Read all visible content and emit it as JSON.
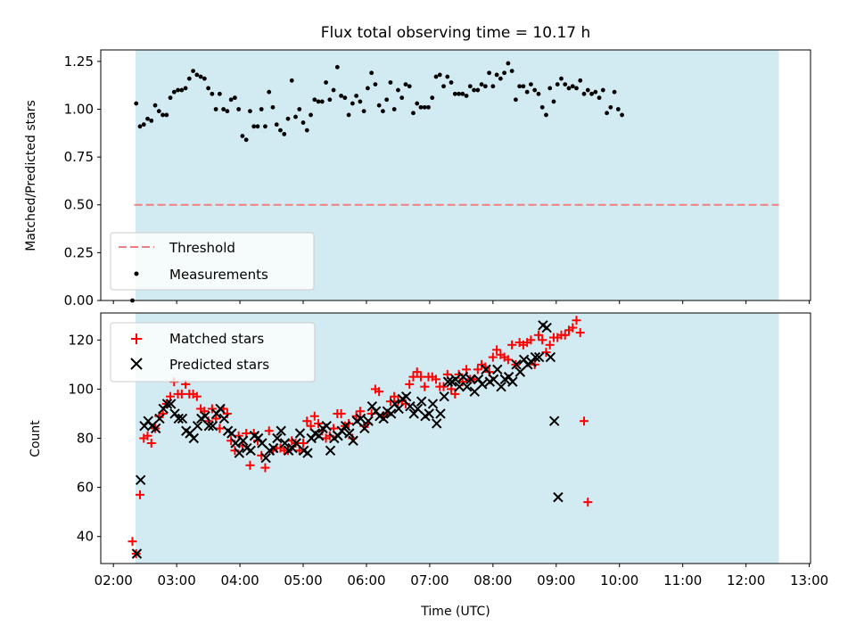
{
  "chart_data": [
    {
      "type": "scatter",
      "title": "Flux total observing time = 10.17 h",
      "ylabel": "Matched/Predicted stars",
      "xlabel": "",
      "ylim": [
        0,
        1.31
      ],
      "xlim_hours": [
        1.8,
        13.02
      ],
      "yticks": [
        "0.00",
        "0.25",
        "0.50",
        "0.75",
        "1.00",
        "1.25"
      ],
      "shaded_range_hours": [
        2.35,
        12.52
      ],
      "threshold": 0.5,
      "legend": {
        "position": "lower-left",
        "entries": [
          "Threshold",
          "Measurements"
        ]
      },
      "series": [
        {
          "name": "Measurements",
          "x_start_hours": 2.3,
          "x_step_hours": 0.06,
          "y": [
            0.0,
            1.03,
            0.91,
            0.92,
            0.95,
            0.94,
            1.02,
            0.99,
            0.97,
            0.97,
            1.06,
            1.09,
            1.1,
            1.1,
            1.11,
            1.16,
            1.2,
            1.18,
            1.17,
            1.16,
            1.11,
            1.08,
            1.0,
            1.08,
            1.0,
            0.99,
            1.05,
            1.06,
            1.0,
            0.86,
            0.84,
            0.99,
            0.91,
            0.91,
            1.0,
            0.91,
            1.09,
            1.01,
            0.92,
            0.89,
            0.87,
            0.95,
            1.15,
            0.96,
            1.0,
            0.93,
            0.89,
            0.97,
            1.05,
            1.04,
            1.04,
            1.14,
            1.05,
            1.1,
            1.22,
            1.07,
            1.06,
            0.97,
            1.03,
            1.07,
            1.04,
            0.99,
            1.11,
            1.19,
            1.13,
            1.02,
            0.99,
            1.05,
            1.14,
            1.0,
            1.1,
            1.06,
            1.13,
            1.12,
            0.98,
            1.03,
            1.01,
            1.01,
            1.01,
            1.06,
            1.17,
            1.18,
            1.12,
            1.17,
            1.14,
            1.08,
            1.08,
            1.08,
            1.07,
            1.12,
            1.1,
            1.1,
            1.13,
            1.12,
            1.19,
            1.12,
            1.18,
            1.16,
            1.19,
            1.24,
            1.2,
            1.05,
            1.12,
            1.12,
            1.09,
            1.13,
            1.1,
            1.08,
            1.01,
            0.97,
            1.11,
            1.04,
            1.13,
            1.16,
            1.13,
            1.11,
            1.12,
            1.11,
            1.15,
            1.08,
            1.1,
            1.08,
            1.09,
            1.06,
            1.1,
            0.98,
            1.01,
            1.09,
            1.0,
            0.97
          ]
        },
        {
          "name": "Threshold",
          "y_constant": 0.5,
          "x_range_hours": [
            2.33,
            12.52
          ]
        }
      ]
    },
    {
      "type": "scatter",
      "title": "",
      "ylabel": "Count",
      "xlabel": "Time (UTC)",
      "ylim": [
        29,
        131
      ],
      "xlim_hours": [
        1.8,
        13.02
      ],
      "yticks": [
        "40",
        "60",
        "80",
        "100",
        "120"
      ],
      "xticks": [
        "02:00",
        "03:00",
        "04:00",
        "05:00",
        "06:00",
        "07:00",
        "08:00",
        "09:00",
        "10:00",
        "11:00",
        "12:00",
        "13:00"
      ],
      "shaded_range_hours": [
        2.35,
        12.52
      ],
      "legend": {
        "position": "upper-left",
        "entries": [
          "Matched stars",
          "Predicted stars"
        ]
      },
      "series": [
        {
          "name": "Matched stars",
          "x_start_hours": 2.3,
          "x_step_hours": 0.06,
          "y": [
            38,
            33,
            57,
            80,
            81,
            78,
            84,
            89,
            90,
            94,
            97,
            103,
            98,
            98,
            102,
            98,
            98,
            97,
            92,
            91,
            87,
            92,
            88,
            84,
            92,
            90,
            79,
            75,
            81,
            77,
            82,
            69,
            82,
            79,
            73,
            68,
            83,
            75,
            76,
            76,
            75,
            75,
            79,
            78,
            75,
            78,
            87,
            85,
            89,
            86,
            83,
            80,
            81,
            84,
            90,
            90,
            85,
            86,
            80,
            89,
            91,
            85,
            86,
            90,
            100,
            99,
            89,
            90,
            95,
            97,
            95,
            95,
            94,
            102,
            105,
            107,
            105,
            101,
            105,
            105,
            104,
            101,
            101,
            106,
            100,
            98,
            106,
            103,
            108,
            104,
            104,
            108,
            110,
            109,
            107,
            113,
            116,
            114,
            113,
            112,
            118,
            110,
            119,
            118,
            119,
            120,
            110,
            122,
            120,
            115,
            118,
            121,
            121,
            122,
            122,
            124,
            125,
            128,
            123,
            87,
            54
          ]
        },
        {
          "name": "Predicted stars",
          "x_start_hours": 2.37,
          "x_step_hours": 0.06,
          "y": [
            33,
            63,
            85,
            87,
            85,
            84,
            88,
            92,
            94,
            94,
            90,
            88,
            88,
            83,
            82,
            80,
            85,
            88,
            89,
            85,
            85,
            90,
            92,
            88,
            83,
            82,
            78,
            74,
            79,
            76,
            75,
            81,
            80,
            78,
            72,
            75,
            76,
            80,
            83,
            78,
            75,
            76,
            78,
            82,
            75,
            74,
            80,
            82,
            81,
            84,
            85,
            75,
            80,
            81,
            83,
            85,
            82,
            79,
            87,
            88,
            84,
            87,
            93,
            91,
            89,
            88,
            91,
            90,
            94,
            92,
            96,
            97,
            93,
            90,
            92,
            95,
            89,
            90,
            94,
            86,
            90,
            97,
            103,
            103,
            104,
            101,
            105,
            101,
            104,
            99,
            104,
            102,
            108,
            103,
            104,
            108,
            101,
            104,
            105,
            103,
            110,
            107,
            112,
            110,
            111,
            113,
            113,
            126,
            125,
            113,
            87,
            56
          ]
        }
      ]
    }
  ],
  "colors": {
    "shade": "#add8e6",
    "threshold": "#f08080",
    "matched": "#ff0000",
    "predicted": "#000000",
    "measurements": "#000000"
  }
}
